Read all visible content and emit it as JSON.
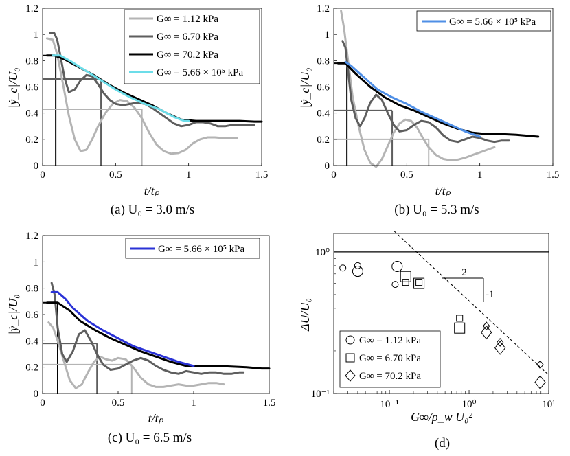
{
  "chart_data": [
    {
      "type": "line",
      "panel": "a",
      "caption": "(a) U₀ = 3.0 m/s",
      "xlabel": "t/tₚ",
      "ylabel": "|ẏ_c|/U₀",
      "xlim": [
        0,
        1.5
      ],
      "ylim": [
        0,
        1.2
      ],
      "xticks": [
        "0",
        "0.5",
        "1",
        "1.5"
      ],
      "yticks": [
        "0",
        "0.2",
        "0.4",
        "0.6",
        "0.8",
        "1",
        "1.2"
      ],
      "series": [
        {
          "name": "G∞ = 1.12 kPa",
          "color": "#b4b4b4",
          "x": [
            0.03,
            0.07,
            0.1,
            0.14,
            0.18,
            0.22,
            0.26,
            0.3,
            0.34,
            0.38,
            0.43,
            0.48,
            0.53,
            0.58,
            0.63,
            0.68,
            0.73,
            0.78,
            0.83,
            0.88,
            0.93,
            0.98,
            1.03,
            1.08,
            1.13,
            1.18,
            1.23,
            1.28,
            1.33
          ],
          "y": [
            0.97,
            0.96,
            0.85,
            0.62,
            0.38,
            0.2,
            0.11,
            0.12,
            0.2,
            0.3,
            0.4,
            0.47,
            0.5,
            0.49,
            0.44,
            0.36,
            0.25,
            0.16,
            0.11,
            0.09,
            0.095,
            0.12,
            0.17,
            0.2,
            0.215,
            0.215,
            0.21,
            0.21,
            0.21
          ]
        },
        {
          "name": "G∞ = 6.70 kPa",
          "color": "#5e5e5e",
          "x": [
            0.05,
            0.08,
            0.1,
            0.12,
            0.15,
            0.18,
            0.22,
            0.26,
            0.3,
            0.34,
            0.38,
            0.42,
            0.46,
            0.5,
            0.55,
            0.6,
            0.65,
            0.7,
            0.75,
            0.8,
            0.85,
            0.9,
            0.95,
            1.0,
            1.05,
            1.1,
            1.15,
            1.2,
            1.25,
            1.3,
            1.35,
            1.4,
            1.45
          ],
          "y": [
            1.01,
            1.01,
            0.96,
            0.85,
            0.67,
            0.56,
            0.58,
            0.65,
            0.69,
            0.68,
            0.62,
            0.55,
            0.5,
            0.47,
            0.46,
            0.47,
            0.48,
            0.47,
            0.44,
            0.4,
            0.36,
            0.32,
            0.3,
            0.31,
            0.33,
            0.33,
            0.32,
            0.3,
            0.3,
            0.31,
            0.31,
            0.31,
            0.31
          ]
        },
        {
          "name": "G∞ = 70.2 kPa",
          "color": "#000000",
          "x": [
            0.03,
            0.08,
            0.15,
            0.25,
            0.35,
            0.45,
            0.55,
            0.65,
            0.75,
            0.85,
            0.95,
            1.05,
            1.15,
            1.25,
            1.35,
            1.45,
            1.5
          ],
          "y": [
            0.84,
            0.84,
            0.81,
            0.75,
            0.69,
            0.62,
            0.56,
            0.51,
            0.46,
            0.4,
            0.35,
            0.34,
            0.34,
            0.34,
            0.34,
            0.335,
            0.335
          ]
        },
        {
          "name": "G∞ = 5.66 × 10⁵ kPa",
          "color": "#6cdde9",
          "x": [
            0.07,
            0.12,
            0.2,
            0.3,
            0.4,
            0.5,
            0.6,
            0.7,
            0.8,
            0.9,
            0.97,
            1.0
          ],
          "y": [
            0.84,
            0.84,
            0.79,
            0.72,
            0.65,
            0.58,
            0.52,
            0.47,
            0.43,
            0.37,
            0.34,
            0.34
          ]
        }
      ],
      "guides": [
        {
          "t": 0.09,
          "v": 0.84,
          "color": "#000000"
        },
        {
          "t": 0.4,
          "v": 0.66,
          "color": "#5e5e5e"
        },
        {
          "t": 0.68,
          "v": 0.43,
          "color": "#b4b4b4"
        }
      ],
      "legend": [
        "G∞ = 1.12 kPa",
        "G∞ = 6.70 kPa",
        "G∞ = 70.2 kPa",
        "G∞ = 5.66 × 10⁵ kPa"
      ]
    },
    {
      "type": "line",
      "panel": "b",
      "caption": "(b) U₀ = 5.3 m/s",
      "xlabel": "t/tₚ",
      "ylabel": "|ẏ_c|/U₀",
      "xlim": [
        0,
        1.5
      ],
      "ylim": [
        0,
        1.2
      ],
      "xticks": [
        "0",
        "0.5",
        "1",
        "1.5"
      ],
      "yticks": [
        "0",
        "0.2",
        "0.4",
        "0.6",
        "0.8",
        "1",
        "1.2"
      ],
      "series": [
        {
          "name": "G∞ = 1.12 kPa",
          "color": "#b4b4b4",
          "x": [
            0.05,
            0.07,
            0.1,
            0.13,
            0.17,
            0.21,
            0.25,
            0.29,
            0.33,
            0.37,
            0.41,
            0.45,
            0.49,
            0.53,
            0.57,
            0.61,
            0.65,
            0.7,
            0.75,
            0.8,
            0.85,
            0.9,
            0.95,
            1.0,
            1.05,
            1.1
          ],
          "y": [
            1.18,
            1.05,
            0.78,
            0.52,
            0.3,
            0.12,
            0.02,
            -0.01,
            0.05,
            0.15,
            0.25,
            0.32,
            0.35,
            0.34,
            0.29,
            0.21,
            0.14,
            0.08,
            0.05,
            0.04,
            0.045,
            0.06,
            0.08,
            0.1,
            0.12,
            0.14
          ]
        },
        {
          "name": "G∞ = 6.70 kPa",
          "color": "#5e5e5e",
          "x": [
            0.06,
            0.08,
            0.1,
            0.12,
            0.15,
            0.18,
            0.21,
            0.25,
            0.29,
            0.33,
            0.37,
            0.41,
            0.45,
            0.5,
            0.55,
            0.6,
            0.65,
            0.7,
            0.75,
            0.8,
            0.85,
            0.9,
            0.95,
            1.0,
            1.05,
            1.1,
            1.15,
            1.2
          ],
          "y": [
            0.95,
            0.9,
            0.7,
            0.5,
            0.36,
            0.3,
            0.36,
            0.48,
            0.54,
            0.5,
            0.4,
            0.31,
            0.26,
            0.27,
            0.31,
            0.34,
            0.33,
            0.29,
            0.23,
            0.19,
            0.18,
            0.2,
            0.22,
            0.21,
            0.19,
            0.18,
            0.19,
            0.19
          ]
        },
        {
          "name": "G∞ = 70.2 kPa",
          "color": "#000000",
          "x": [
            0.03,
            0.08,
            0.15,
            0.25,
            0.35,
            0.45,
            0.55,
            0.65,
            0.75,
            0.85,
            0.95,
            1.05,
            1.15,
            1.25,
            1.35,
            1.4
          ],
          "y": [
            0.78,
            0.78,
            0.7,
            0.6,
            0.52,
            0.46,
            0.42,
            0.37,
            0.32,
            0.28,
            0.25,
            0.24,
            0.24,
            0.235,
            0.225,
            0.22
          ]
        },
        {
          "name": "G∞ = 5.66 × 10⁵ kPa",
          "color": "#4f8fe6",
          "x": [
            0.08,
            0.12,
            0.2,
            0.3,
            0.4,
            0.5,
            0.6,
            0.7,
            0.8,
            0.9,
            1.0
          ],
          "y": [
            0.79,
            0.76,
            0.68,
            0.58,
            0.52,
            0.47,
            0.41,
            0.36,
            0.31,
            0.26,
            0.22
          ]
        }
      ],
      "guides": [
        {
          "t": 0.09,
          "v": 0.78,
          "color": "#000000"
        },
        {
          "t": 0.4,
          "v": 0.42,
          "color": "#5e5e5e"
        },
        {
          "t": 0.65,
          "v": 0.2,
          "color": "#b4b4b4"
        }
      ],
      "legend": [
        "G∞ = 5.66 × 10⁵ kPa"
      ]
    },
    {
      "type": "line",
      "panel": "c",
      "caption": "(c) U₀ = 6.5 m/s",
      "xlabel": "t/tₚ",
      "ylabel": "|ẏ_c|/U₀",
      "xlim": [
        0,
        1.5
      ],
      "ylim": [
        0,
        1.2
      ],
      "xticks": [
        "0",
        "0.5",
        "1",
        "1.5"
      ],
      "yticks": [
        "0",
        "0.2",
        "0.4",
        "0.6",
        "0.8",
        "1",
        "1.2"
      ],
      "series": [
        {
          "name": "G∞ = 1.12 kPa",
          "color": "#b4b4b4",
          "x": [
            0.04,
            0.07,
            0.1,
            0.14,
            0.18,
            0.22,
            0.26,
            0.3,
            0.34,
            0.38,
            0.42,
            0.46,
            0.5,
            0.55,
            0.6,
            0.65,
            0.7,
            0.75,
            0.8,
            0.85,
            0.9,
            0.95,
            1.0,
            1.05,
            1.1,
            1.15,
            1.2
          ],
          "y": [
            0.54,
            0.5,
            0.4,
            0.25,
            0.1,
            0.04,
            0.07,
            0.16,
            0.24,
            0.28,
            0.26,
            0.25,
            0.27,
            0.26,
            0.2,
            0.12,
            0.07,
            0.05,
            0.05,
            0.06,
            0.07,
            0.06,
            0.06,
            0.07,
            0.08,
            0.08,
            0.07
          ]
        },
        {
          "name": "G∞ = 6.70 kPa",
          "color": "#5e5e5e",
          "x": [
            0.06,
            0.08,
            0.1,
            0.13,
            0.16,
            0.2,
            0.24,
            0.28,
            0.32,
            0.36,
            0.4,
            0.45,
            0.5,
            0.55,
            0.6,
            0.65,
            0.7,
            0.75,
            0.8,
            0.85,
            0.9,
            0.95,
            1.0,
            1.05,
            1.1,
            1.15,
            1.2,
            1.25,
            1.3,
            1.33
          ],
          "y": [
            0.84,
            0.75,
            0.5,
            0.3,
            0.24,
            0.32,
            0.45,
            0.48,
            0.4,
            0.3,
            0.22,
            0.18,
            0.19,
            0.22,
            0.25,
            0.27,
            0.25,
            0.21,
            0.18,
            0.16,
            0.15,
            0.17,
            0.16,
            0.15,
            0.16,
            0.16,
            0.15,
            0.15,
            0.16,
            0.16
          ]
        },
        {
          "name": "G∞ = 70.2 kPa",
          "color": "#000000",
          "x": [
            0.03,
            0.1,
            0.18,
            0.25,
            0.35,
            0.45,
            0.55,
            0.65,
            0.75,
            0.85,
            0.95,
            1.05,
            1.15,
            1.25,
            1.35,
            1.45,
            1.5
          ],
          "y": [
            0.69,
            0.69,
            0.63,
            0.55,
            0.48,
            0.42,
            0.37,
            0.32,
            0.28,
            0.24,
            0.21,
            0.21,
            0.21,
            0.205,
            0.2,
            0.19,
            0.19
          ]
        },
        {
          "name": "G∞ = 5.66 × 10⁵ kPa",
          "color": "#2a32d6",
          "x": [
            0.06,
            0.1,
            0.15,
            0.2,
            0.3,
            0.4,
            0.5,
            0.6,
            0.7,
            0.8,
            0.9,
            1.0
          ],
          "y": [
            0.77,
            0.77,
            0.72,
            0.65,
            0.55,
            0.48,
            0.42,
            0.36,
            0.32,
            0.28,
            0.24,
            0.21
          ]
        }
      ],
      "guides": [
        {
          "t": 0.1,
          "v": 0.69,
          "color": "#000000"
        },
        {
          "t": 0.36,
          "v": 0.38,
          "color": "#5e5e5e"
        },
        {
          "t": 0.59,
          "v": 0.22,
          "color": "#b4b4b4"
        }
      ],
      "legend": [
        "G∞ = 5.66 × 10⁵ kPa"
      ]
    },
    {
      "type": "scatter",
      "panel": "d",
      "caption": "(d)",
      "xlabel": "G∞/ρ_w U₀²",
      "ylabel": "ΔU/U₀",
      "xscale": "log",
      "yscale": "log",
      "xlim": [
        0.02,
        10
      ],
      "ylim": [
        0.1,
        1.35
      ],
      "xticks": [
        "10⁻¹",
        "10⁰",
        "10¹"
      ],
      "yticks": [
        "10⁻¹",
        "10⁰"
      ],
      "series": [
        {
          "name": "G∞ = 1.12 kPa",
          "marker": "circle",
          "points": [
            [
              0.026,
              0.77,
              "s"
            ],
            [
              0.04,
              0.8,
              "s"
            ],
            [
              0.04,
              0.73,
              "l"
            ],
            [
              0.118,
              0.59,
              "s"
            ],
            [
              0.125,
              0.79,
              "l"
            ]
          ]
        },
        {
          "name": "G∞ = 6.70 kPa",
          "marker": "square",
          "points": [
            [
              0.16,
              0.67,
              "l"
            ],
            [
              0.16,
              0.61,
              "s"
            ],
            [
              0.235,
              0.6,
              "l"
            ],
            [
              0.235,
              0.61,
              "s"
            ],
            [
              0.76,
              0.34,
              "s"
            ],
            [
              0.76,
              0.29,
              "l"
            ]
          ]
        },
        {
          "name": "G∞ = 70.2 kPa",
          "marker": "diamond",
          "points": [
            [
              1.65,
              0.3,
              "s"
            ],
            [
              1.65,
              0.27,
              "l"
            ],
            [
              2.45,
              0.23,
              "s"
            ],
            [
              2.45,
              0.21,
              "l"
            ],
            [
              7.8,
              0.16,
              "s"
            ],
            [
              7.8,
              0.12,
              "l"
            ]
          ]
        }
      ],
      "reference_lines": [
        {
          "style": "solid",
          "y": 1.0
        },
        {
          "style": "dashed",
          "from": [
            0.115,
            1.4
          ],
          "to": [
            10,
            0.135
          ]
        }
      ],
      "slope_triangle": {
        "run_label": "2",
        "rise_label": "-1"
      },
      "legend": [
        "G∞ = 1.12 kPa",
        "G∞ = 6.70 kPa",
        "G∞ = 70.2 kPa"
      ]
    }
  ]
}
